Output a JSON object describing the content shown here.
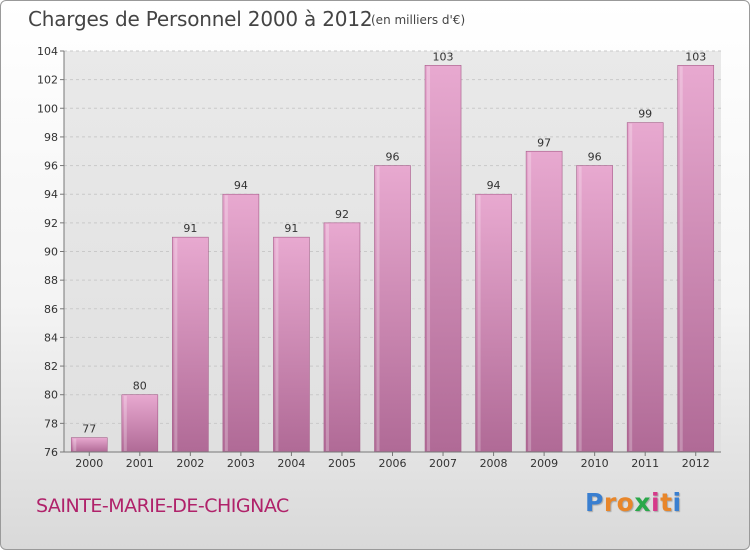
{
  "header": {
    "title": "Charges de Personnel 2000 à 2012",
    "subtitle": "(en milliers d'€)"
  },
  "footer": {
    "commune": "SAINTE-MARIE-DE-CHIGNAC",
    "logo_letters": [
      "P",
      "r",
      "o",
      "x",
      "i",
      "t",
      "i"
    ],
    "logo_colors": [
      "#3a7fd0",
      "#e8862a",
      "#e8862a",
      "#2aa84a",
      "#d63a8a",
      "#e8862a",
      "#3a7fd0"
    ]
  },
  "chart_data": {
    "type": "bar",
    "title": "Charges de Personnel 2000 à 2012",
    "subtitle": "(en milliers d'€)",
    "categories": [
      "2000",
      "2001",
      "2002",
      "2003",
      "2004",
      "2005",
      "2006",
      "2007",
      "2008",
      "2009",
      "2010",
      "2011",
      "2012"
    ],
    "values": [
      77,
      80,
      91,
      94,
      91,
      92,
      96,
      103,
      94,
      97,
      96,
      99,
      103
    ],
    "ylim": [
      76,
      104
    ],
    "yticks": [
      76,
      78,
      80,
      82,
      84,
      86,
      88,
      90,
      92,
      94,
      96,
      98,
      100,
      102,
      104
    ],
    "grid": true,
    "bar_color": "#d98bb8",
    "bar_color_dark": "#b56896"
  }
}
